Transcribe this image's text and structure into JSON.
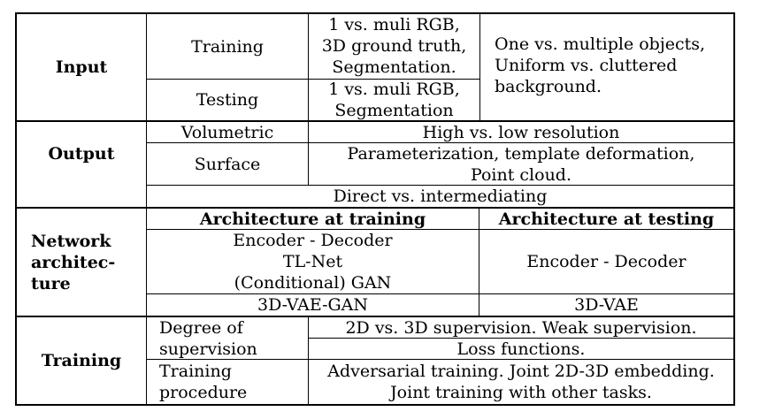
{
  "input": {
    "label": "Input",
    "training_label": "Training",
    "training_data": [
      "1 vs. muli RGB,",
      "3D ground truth,",
      "Segmentation."
    ],
    "testing_label": "Testing",
    "testing_data": [
      "1 vs. muli RGB,",
      "Segmentation"
    ],
    "objects": [
      "One vs. multiple objects,",
      "Uniform vs. cluttered",
      "background."
    ]
  },
  "output": {
    "label": "Output",
    "volumetric_label": "Volumetric",
    "volumetric_value": "High vs. low resolution",
    "surface_label": "Surface",
    "surface_value": [
      "Parameterization, template deformation,",
      "Point cloud."
    ],
    "direct": "Direct vs. intermediating"
  },
  "network": {
    "label": [
      "Network",
      "architec-",
      "ture"
    ],
    "arch_training_header": "Architecture at training",
    "arch_testing_header": "Architecture at testing",
    "training_items": [
      "Encoder - Decoder",
      "TL-Net",
      "(Conditional) GAN"
    ],
    "testing_item": "Encoder - Decoder",
    "training_bottom": "3D-VAE-GAN",
    "testing_bottom": "3D-VAE"
  },
  "training": {
    "label": "Training",
    "supervision_label": [
      "Degree of",
      "supervision"
    ],
    "supervision_value": "2D vs. 3D supervision. Weak supervision.",
    "loss_value": "Loss functions.",
    "procedure_label": [
      "Training",
      "procedure"
    ],
    "procedure_value": [
      "Adversarial training. Joint 2D-3D embedding.",
      "Joint training with other tasks."
    ]
  }
}
